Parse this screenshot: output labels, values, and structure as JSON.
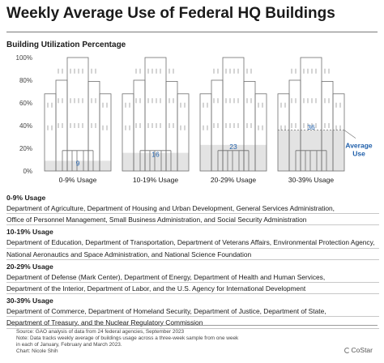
{
  "title": "Weekly Average Use of Federal HQ Buildings",
  "chart_data": {
    "type": "bar",
    "title": "Weekly Average Use of Federal HQ Buildings",
    "subtitle": "Building Utilization Percentage",
    "categories": [
      "0-9% Usage",
      "10-19% Usage",
      "20-29% Usage",
      "30-39% Usage"
    ],
    "values": [
      9,
      16,
      23,
      36
    ],
    "y_ticks": [
      "0%",
      "20%",
      "40%",
      "60%",
      "80%",
      "100%"
    ],
    "ylim": [
      0,
      100
    ],
    "annotation": "Average Use",
    "colors": {
      "fill": "#e3e3e3",
      "building_line": "#6f6f6f",
      "value_text": "#1f5faa",
      "annotation": "#1f5faa",
      "tick": "#444444"
    }
  },
  "agency_groups": [
    {
      "heading": "0-9% Usage",
      "lines": [
        "Department of Agriculture, Department of Housing and Urban Development, General Services Administration,",
        "Office of Personnel Management, Small Business Administration, and Social Security Administration"
      ]
    },
    {
      "heading": "10-19% Usage",
      "lines": [
        "Department of Education, Department of Transportation, Department of Veterans Affairs, Environmental Protection Agency,",
        "National Aeronautics and Space Administration, and National Science Foundation"
      ]
    },
    {
      "heading": "20-29% Usage",
      "lines": [
        "Department of Defense (Mark Center), Department of Energy, Department of Health and Human Services,",
        "Department of the Interior, Department of Labor, and the U.S. Agency for International Development"
      ]
    },
    {
      "heading": "30-39% Usage",
      "lines": [
        "Department of Commerce, Department of Homeland Security, Department of Justice, Department of State,",
        "Department of Treasury, and the Nuclear Regulatory Commission"
      ]
    }
  ],
  "notes": [
    "Source: GAO analysis of data from 24 federal agencies, September 2023",
    "Note: Data tracks weekly average of buildings usage across a three-week sample from one week",
    "in each of January, February and March 2023.",
    "Chart: Nicole Shih"
  ],
  "brand": "CoStar"
}
